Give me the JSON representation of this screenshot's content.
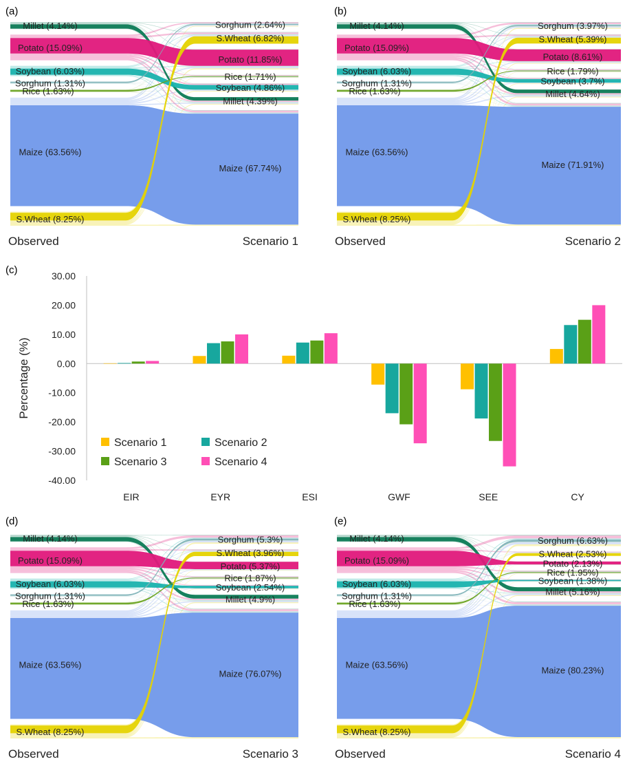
{
  "colors": {
    "Millet": "#0b7a55",
    "Potato": "#e0187b",
    "Soybean": "#18b2ad",
    "Sorghum": "#7fb3b8",
    "Rice": "#6aa321",
    "Maize": "#7098ea",
    "S.Wheat": "#e5d300",
    "Scenario 1": "#ffc000",
    "Scenario 2": "#17a79e",
    "Scenario 3": "#5aa017",
    "Scenario 4": "#ff4fb6"
  },
  "chart_data": [
    {
      "type": "sankey",
      "panel": "(a)",
      "left_title": "Observed",
      "right_title": "Scenario 1",
      "left": [
        {
          "crop": "Millet",
          "label": "Millet (4.14%)",
          "value": 4.14
        },
        {
          "crop": "Potato",
          "label": "Potato (15.09%)",
          "value": 15.09
        },
        {
          "crop": "Soybean",
          "label": "Soybean (6.03%)",
          "value": 6.03
        },
        {
          "crop": "Sorghum",
          "label": "Sorghum (1.31%)",
          "value": 1.31
        },
        {
          "crop": "Rice",
          "label": "Rice (1.63%)",
          "value": 1.63
        },
        {
          "crop": "Maize",
          "label": "Maize (63.56%)",
          "value": 63.56
        },
        {
          "crop": "S.Wheat",
          "label": "S.Wheat (8.25%)",
          "value": 8.25
        }
      ],
      "right": [
        {
          "crop": "Sorghum",
          "label": "Sorghum (2.64%)",
          "value": 2.64
        },
        {
          "crop": "S.Wheat",
          "label": "S.Wheat (6.82%)",
          "value": 6.82
        },
        {
          "crop": "Potato",
          "label": "Potato (11.85%)",
          "value": 11.85
        },
        {
          "crop": "Rice",
          "label": "Rice (1.71%)",
          "value": 1.71
        },
        {
          "crop": "Soybean",
          "label": "Soybean (4.86%)",
          "value": 4.86
        },
        {
          "crop": "Millet",
          "label": "Millet (4.39%)",
          "value": 4.39
        },
        {
          "crop": "Maize",
          "label": "Maize (67.74%)",
          "value": 67.74
        }
      ]
    },
    {
      "type": "sankey",
      "panel": "(b)",
      "left_title": "Observed",
      "right_title": "Scenario 2",
      "left": [
        {
          "crop": "Millet",
          "label": "Millet (4.14%)",
          "value": 4.14
        },
        {
          "crop": "Potato",
          "label": "Potato (15.09%)",
          "value": 15.09
        },
        {
          "crop": "Soybean",
          "label": "Soybean (6.03%)",
          "value": 6.03
        },
        {
          "crop": "Sorghum",
          "label": "Sorghum (1.31%)",
          "value": 1.31
        },
        {
          "crop": "Rice",
          "label": "Rice (1.63%)",
          "value": 1.63
        },
        {
          "crop": "Maize",
          "label": "Maize (63.56%)",
          "value": 63.56
        },
        {
          "crop": "S.Wheat",
          "label": "S.Wheat (8.25%)",
          "value": 8.25
        }
      ],
      "right": [
        {
          "crop": "Sorghum",
          "label": "Sorghum (3.97%)",
          "value": 3.97
        },
        {
          "crop": "S.Wheat",
          "label": "S.Wheat (5.39%)",
          "value": 5.39
        },
        {
          "crop": "Potato",
          "label": "Potato (8.61%)",
          "value": 8.61
        },
        {
          "crop": "Rice",
          "label": "Rice (1.79%)",
          "value": 1.79
        },
        {
          "crop": "Soybean",
          "label": "Soybean (3.7%)",
          "value": 3.7
        },
        {
          "crop": "Millet",
          "label": "Millet (4.64%)",
          "value": 4.64
        },
        {
          "crop": "Maize",
          "label": "Maize (71.91%)",
          "value": 71.91
        }
      ]
    },
    {
      "type": "bar",
      "panel": "(c)",
      "ylabel": "Percentage (%)",
      "ylim": [
        -40,
        30
      ],
      "yticks": [
        "30.00",
        "20.00",
        "10.00",
        "0.00",
        "-10.00",
        "-20.00",
        "-30.00",
        "-40.00"
      ],
      "categories": [
        "EIR",
        "EYR",
        "ESI",
        "GWF",
        "SEE",
        "CY"
      ],
      "legend_placement": "bottom-left",
      "series": [
        {
          "name": "Scenario 1",
          "values": [
            0.1,
            2.6,
            2.7,
            -7.2,
            -8.8,
            5.0
          ]
        },
        {
          "name": "Scenario 2",
          "values": [
            0.2,
            7.0,
            7.2,
            -17.0,
            -18.8,
            13.2
          ]
        },
        {
          "name": "Scenario 3",
          "values": [
            0.7,
            7.6,
            7.9,
            -20.8,
            -26.5,
            15.0
          ]
        },
        {
          "name": "Scenario 4",
          "values": [
            0.9,
            10.0,
            10.4,
            -27.3,
            -35.2,
            20.0
          ]
        }
      ]
    },
    {
      "type": "sankey",
      "panel": "(d)",
      "left_title": "Observed",
      "right_title": "Scenario 3",
      "left": [
        {
          "crop": "Millet",
          "label": "Millet (4.14%)",
          "value": 4.14
        },
        {
          "crop": "Potato",
          "label": "Potato (15.09%)",
          "value": 15.09
        },
        {
          "crop": "Soybean",
          "label": "Soybean (6.03%)",
          "value": 6.03
        },
        {
          "crop": "Sorghum",
          "label": "Sorghum (1.31%)",
          "value": 1.31
        },
        {
          "crop": "Rice",
          "label": "Rice (1.63%)",
          "value": 1.63
        },
        {
          "crop": "Maize",
          "label": "Maize (63.56%)",
          "value": 63.56
        },
        {
          "crop": "S.Wheat",
          "label": "S.Wheat (8.25%)",
          "value": 8.25
        }
      ],
      "right": [
        {
          "crop": "Sorghum",
          "label": "Sorghum (5.3%)",
          "value": 5.3
        },
        {
          "crop": "S.Wheat",
          "label": "S.Wheat (3.96%)",
          "value": 3.96
        },
        {
          "crop": "Potato",
          "label": "Potato (5.37%)",
          "value": 5.37
        },
        {
          "crop": "Rice",
          "label": "Rice (1.87%)",
          "value": 1.87
        },
        {
          "crop": "Soybean",
          "label": "Soybean (2.54%)",
          "value": 2.54
        },
        {
          "crop": "Millet",
          "label": "Millet (4.9%)",
          "value": 4.9
        },
        {
          "crop": "Maize",
          "label": "Maize (76.07%)",
          "value": 76.07
        }
      ]
    },
    {
      "type": "sankey",
      "panel": "(e)",
      "left_title": "Observed",
      "right_title": "Scenario 4",
      "left": [
        {
          "crop": "Millet",
          "label": "Millet (4.14%)",
          "value": 4.14
        },
        {
          "crop": "Potato",
          "label": "Potato (15.09%)",
          "value": 15.09
        },
        {
          "crop": "Soybean",
          "label": "Soybean (6.03%)",
          "value": 6.03
        },
        {
          "crop": "Sorghum",
          "label": "Sorghum (1.31%)",
          "value": 1.31
        },
        {
          "crop": "Rice",
          "label": "Rice (1.63%)",
          "value": 1.63
        },
        {
          "crop": "Maize",
          "label": "Maize (63.56%)",
          "value": 63.56
        },
        {
          "crop": "S.Wheat",
          "label": "S.Wheat (8.25%)",
          "value": 8.25
        }
      ],
      "right": [
        {
          "crop": "Sorghum",
          "label": "Sorghum (6.63%)",
          "value": 6.63
        },
        {
          "crop": "S.Wheat",
          "label": "S.Wheat (2.53%)",
          "value": 2.53
        },
        {
          "crop": "Potato",
          "label": "Potato (2.13%)",
          "value": 2.13
        },
        {
          "crop": "Rice",
          "label": "Rice (1.95%)",
          "value": 1.95
        },
        {
          "crop": "Soybean",
          "label": "Soybean (1.38%)",
          "value": 1.38
        },
        {
          "crop": "Millet",
          "label": "Millet (5.16%)",
          "value": 5.16
        },
        {
          "crop": "Maize",
          "label": "Maize (80.23%)",
          "value": 80.23
        }
      ]
    }
  ]
}
